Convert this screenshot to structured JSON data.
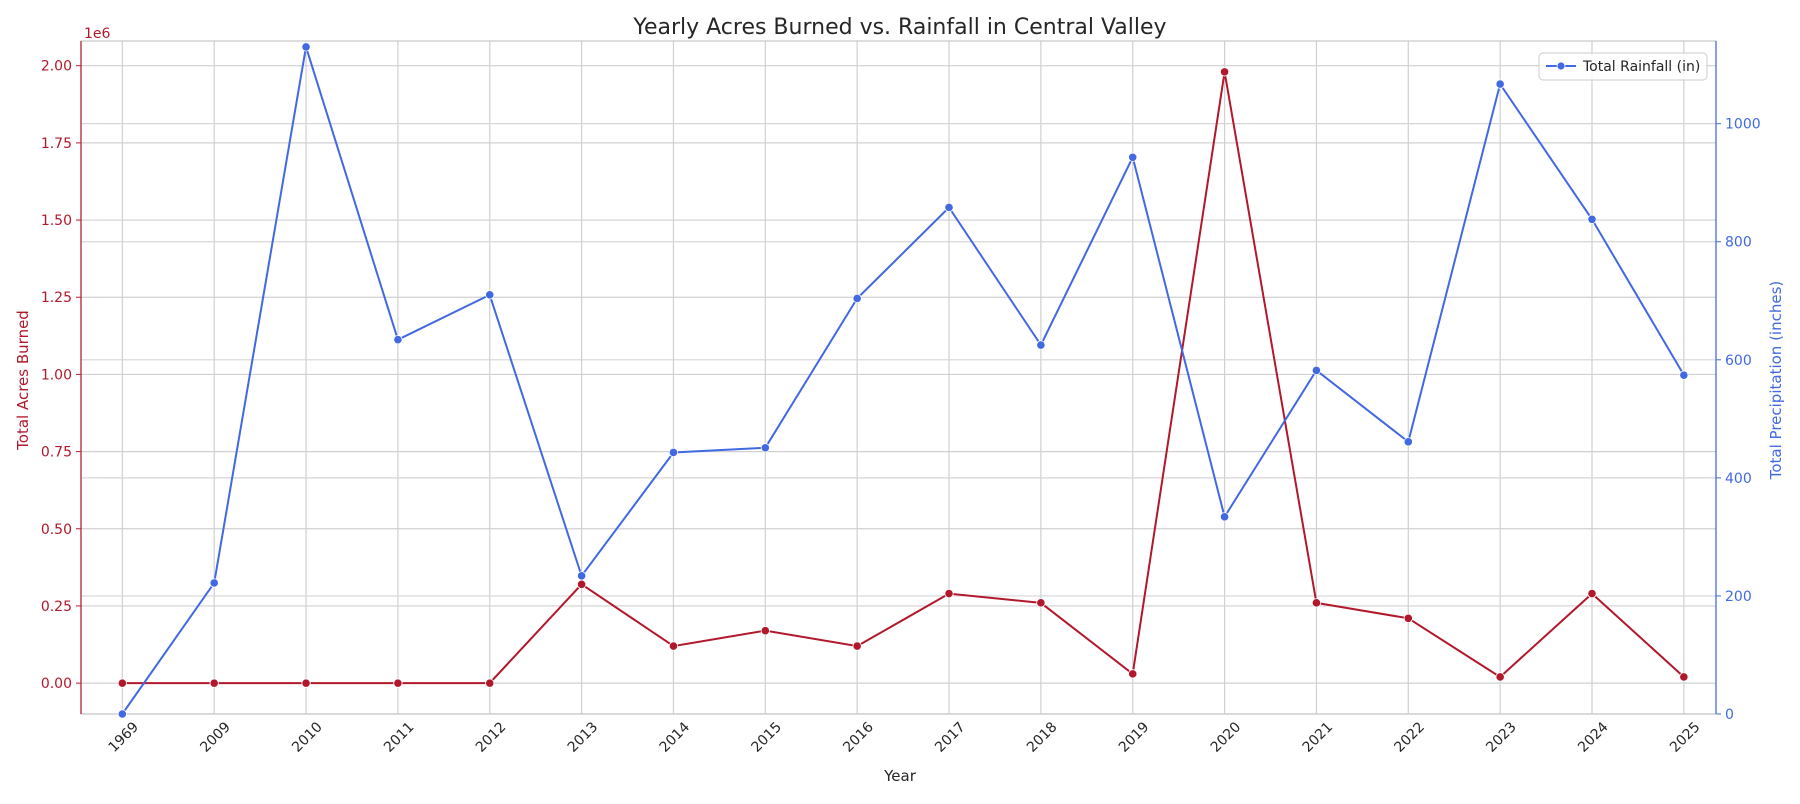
{
  "chart_data": {
    "type": "line",
    "title": "Yearly Acres Burned vs. Rainfall in Central Valley",
    "xlabel": "Year",
    "ylabel_left": "Total Acres Burned",
    "ylabel_right": "Total Precipitation (inches)",
    "left_axis_multiplier": "1e6",
    "categories": [
      "1969",
      "2009",
      "2010",
      "2011",
      "2012",
      "2013",
      "2014",
      "2015",
      "2016",
      "2017",
      "2018",
      "2019",
      "2020",
      "2021",
      "2022",
      "2023",
      "2024",
      "2025"
    ],
    "left_ylim": [
      -0.1,
      2.08
    ],
    "left_ticks": [
      "0.00",
      "0.25",
      "0.50",
      "0.75",
      "1.00",
      "1.25",
      "1.50",
      "1.75",
      "2.00"
    ],
    "right_ylim": [
      0,
      1140
    ],
    "right_ticks": [
      "0",
      "200",
      "400",
      "600",
      "800",
      "1000"
    ],
    "grid": true,
    "legend_position": "top-right",
    "series": [
      {
        "name": "",
        "axis": "left",
        "color": "#b2182b",
        "values": [
          0.0,
          0.0,
          0.0,
          0.0,
          0.0,
          0.32,
          0.12,
          0.17,
          0.12,
          0.29,
          0.26,
          0.03,
          1.98,
          0.26,
          0.21,
          0.02,
          0.29,
          0.02
        ]
      },
      {
        "name": "Total Rainfall (in)",
        "axis": "right",
        "color": "#4169e1",
        "values": [
          0,
          222,
          1130,
          634,
          710,
          234,
          443,
          451,
          704,
          858,
          625,
          943,
          334,
          582,
          461,
          1067,
          838,
          574
        ]
      }
    ]
  }
}
